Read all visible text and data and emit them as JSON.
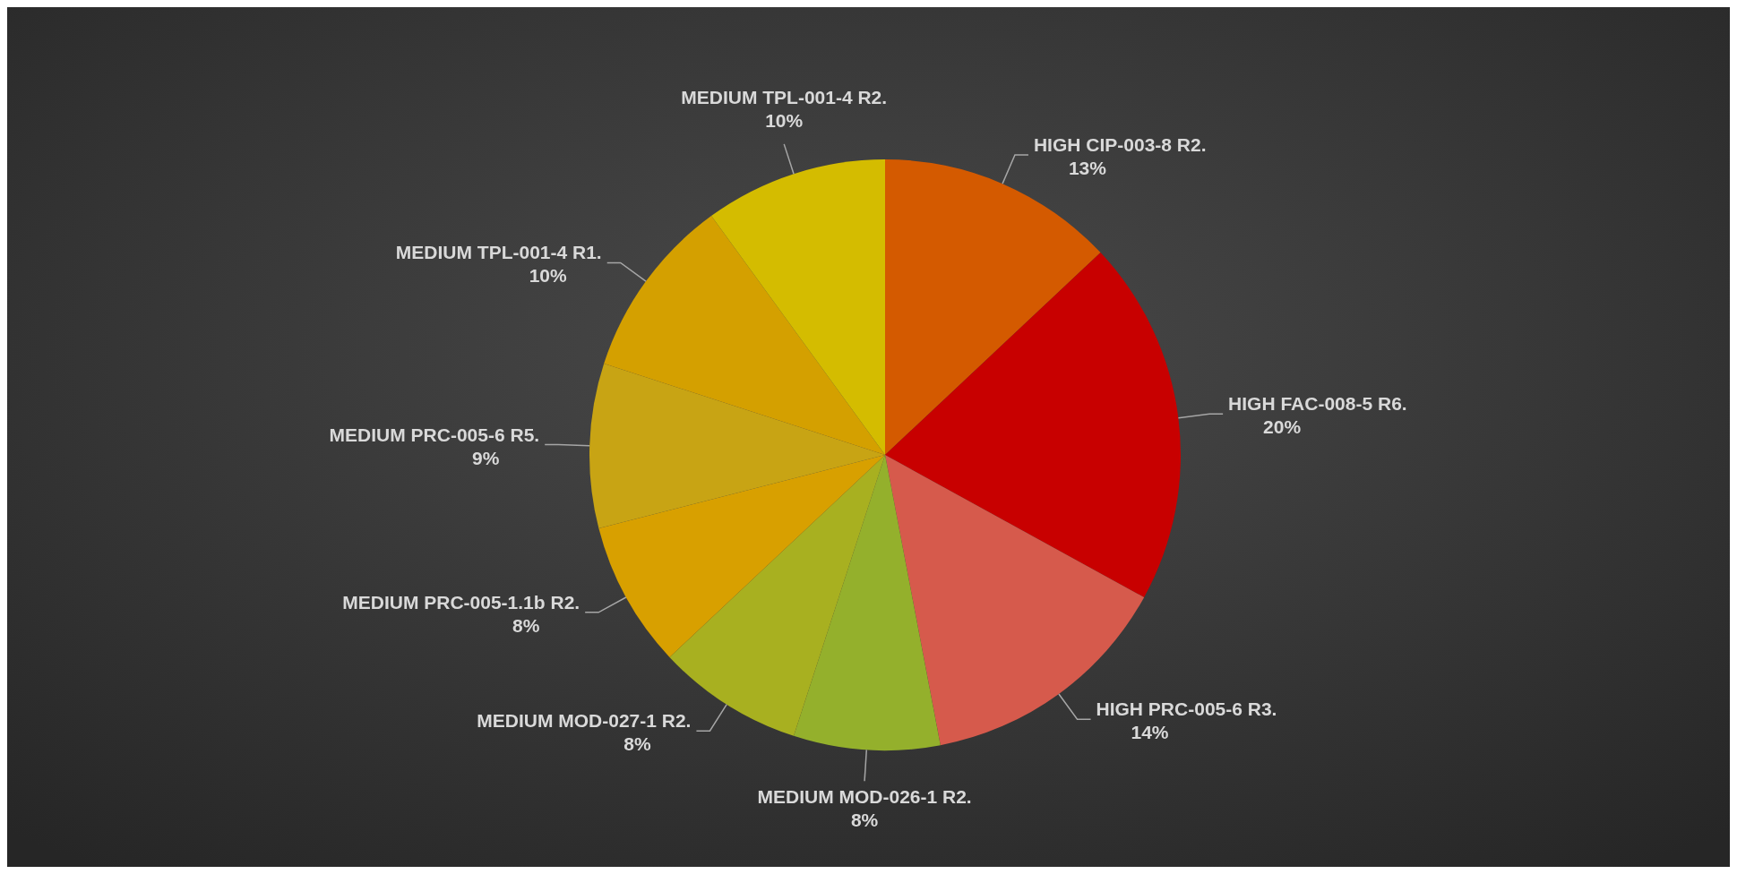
{
  "chart_data": {
    "type": "pie",
    "categories": [
      "HIGH CIP-003-8 R2.",
      "HIGH FAC-008-5 R6.",
      "HIGH PRC-005-6 R3.",
      "MEDIUM MOD-026-1 R2.",
      "MEDIUM MOD-027-1 R2.",
      "MEDIUM PRC-005-1.1b R2.",
      "MEDIUM PRC-005-6 R5.",
      "MEDIUM TPL-001-4 R1.",
      "MEDIUM TPL-001-4 R2."
    ],
    "values": [
      13,
      20,
      14,
      8,
      8,
      8,
      9,
      10,
      10
    ],
    "value_labels": [
      "13%",
      "20%",
      "14%",
      "8%",
      "8%",
      "8%",
      "9%",
      "10%",
      "10%"
    ],
    "colors": [
      "#d45a00",
      "#c80000",
      "#d65a4c",
      "#94b02c",
      "#a8b020",
      "#d8a000",
      "#c8a414",
      "#d4a000",
      "#d4bc00"
    ]
  }
}
